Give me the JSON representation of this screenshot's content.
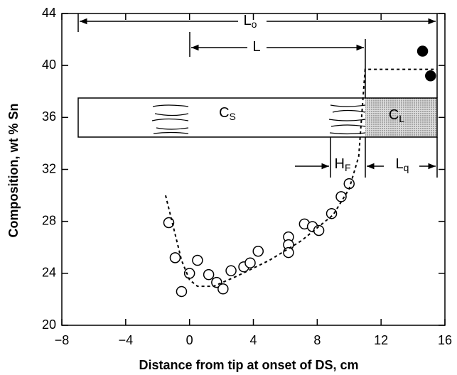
{
  "chart_data": {
    "type": "scatter",
    "xlabel": "Distance from tip at onset of DS, cm",
    "ylabel": "Composition, wt % Sn",
    "xlim": [
      -8,
      16
    ],
    "ylim": [
      20,
      44
    ],
    "xticks": [
      {
        "value": -8,
        "label": "−8"
      },
      {
        "value": -4,
        "label": "−4"
      },
      0,
      4,
      8,
      12,
      16
    ],
    "yticks": [
      20,
      24,
      28,
      32,
      36,
      40,
      44
    ],
    "series": [
      {
        "marker": "open",
        "color": "#000000",
        "x": [
          -1.3,
          -0.9,
          -0.5,
          0,
          0.5,
          1.2,
          1.7,
          2.1,
          2.6,
          3.4,
          3.8,
          4.3,
          6.2,
          6.2,
          6.2,
          7.2,
          7.7,
          8.1,
          8.9,
          9.5,
          10.0
        ],
        "values": [
          27.9,
          25.2,
          22.6,
          24.0,
          25.0,
          23.9,
          23.3,
          22.8,
          24.2,
          24.5,
          24.8,
          25.7,
          26.8,
          26.2,
          25.6,
          27.8,
          27.6,
          27.3,
          28.6,
          29.9,
          30.9
        ]
      },
      {
        "marker": "filled",
        "color": "#000000",
        "x": [
          14.6,
          15.1
        ],
        "values": [
          41.1,
          39.2
        ]
      },
      {
        "marker": "dashed-line",
        "color": "#000000",
        "x": [
          -1.5,
          -1,
          -0.5,
          0,
          0.5,
          1.5,
          3,
          5,
          7,
          9,
          10,
          10.6,
          11,
          15.5
        ],
        "values": [
          30,
          27.5,
          25,
          23.5,
          23,
          23,
          23.8,
          25,
          26.5,
          28.5,
          30.5,
          33,
          39.7,
          39.7
        ]
      }
    ],
    "annotations": {
      "lo": {
        "text": "L",
        "sub": "o"
      },
      "l": {
        "text": "L"
      },
      "cs": {
        "text": "C",
        "sub": "S"
      },
      "cl": {
        "text": "C",
        "sub": "L"
      },
      "hf": {
        "text": "H",
        "sub": "F"
      },
      "lq": {
        "text": "L",
        "sub": "q"
      }
    }
  }
}
